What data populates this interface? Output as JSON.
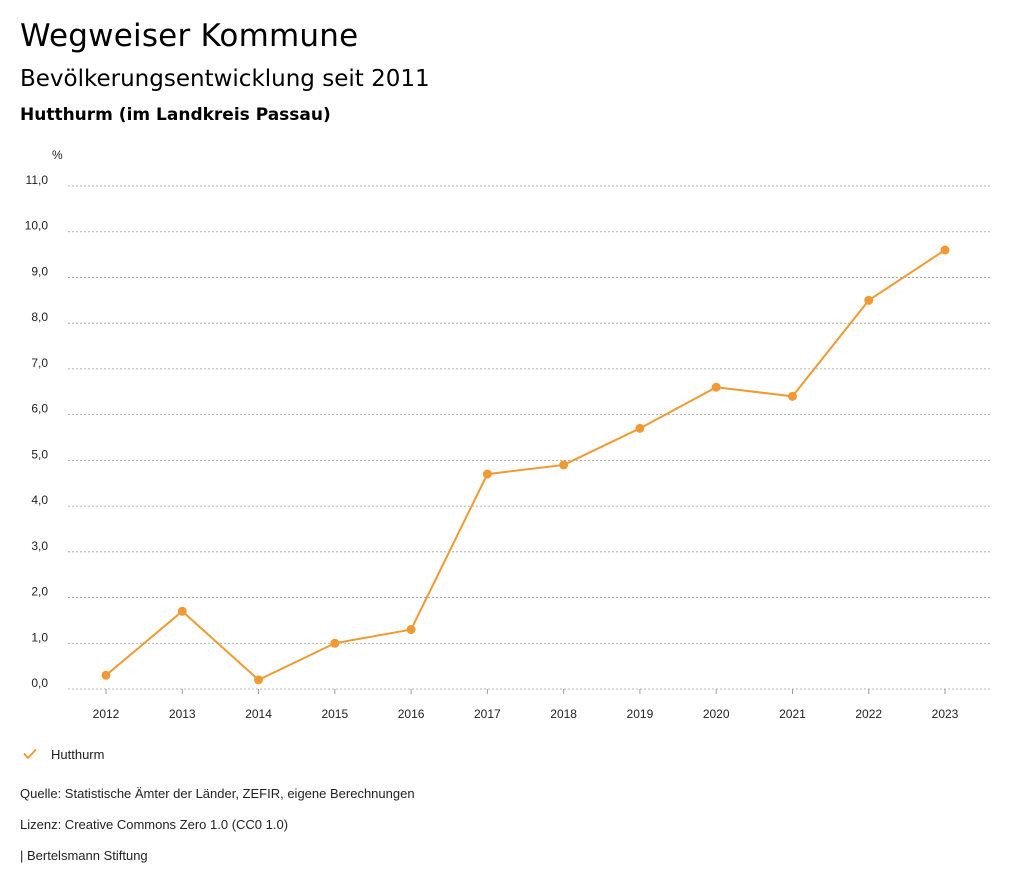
{
  "header": {
    "title": "Wegweiser Kommune",
    "subtitle": "Bevölkerungsentwicklung seit 2011",
    "region": "Hutthurm (im Landkreis Passau)"
  },
  "colors": {
    "series": "#ef9a32",
    "grid": "#9a9a9a",
    "text": "#222222"
  },
  "chart_data": {
    "type": "line",
    "title": "Bevölkerungsentwicklung seit 2011",
    "xlabel": "",
    "ylabel": "%",
    "ylim": [
      0,
      11
    ],
    "yticks": [
      "0,0",
      "1,0",
      "2,0",
      "3,0",
      "4,0",
      "5,0",
      "6,0",
      "7,0",
      "8,0",
      "9,0",
      "10,0",
      "11,0"
    ],
    "grid": true,
    "categories": [
      "2012",
      "2013",
      "2014",
      "2015",
      "2016",
      "2017",
      "2018",
      "2019",
      "2020",
      "2021",
      "2022",
      "2023"
    ],
    "series": [
      {
        "name": "Hutthurm",
        "values": [
          0.3,
          1.7,
          0.2,
          1.0,
          1.3,
          4.7,
          4.9,
          5.7,
          6.6,
          6.4,
          8.5,
          9.6
        ]
      }
    ],
    "legend": "bottom-left"
  },
  "legend": {
    "label": "Hutthurm",
    "icon": "check-icon"
  },
  "footer": {
    "source": "Quelle: Statistische Ämter der Länder, ZEFIR, eigene Berechnungen",
    "license": "Lizenz: Creative Commons Zero 1.0 (CC0 1.0)",
    "publisher": "| Bertelsmann Stiftung"
  }
}
